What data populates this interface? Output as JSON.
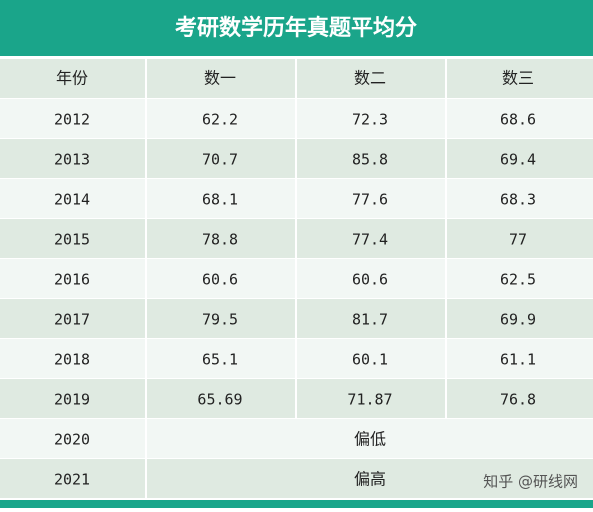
{
  "title": "考研数学历年真题平均分",
  "table": {
    "header": [
      "年份",
      "数一",
      "数二",
      "数三"
    ],
    "rows": [
      [
        "2012",
        62.2,
        72.3,
        68.6
      ],
      [
        "2013",
        70.7,
        85.8,
        69.4
      ],
      [
        "2014",
        68.1,
        77.6,
        68.3
      ],
      [
        "2015",
        78.8,
        77.4,
        77
      ],
      [
        "2016",
        60.6,
        60.6,
        62.5
      ],
      [
        "2017",
        79.5,
        81.7,
        69.9
      ],
      [
        "2018",
        65.1,
        60.1,
        61.1
      ],
      [
        "2019",
        65.69,
        71.87,
        76.8
      ],
      [
        "2020",
        "偏低"
      ],
      [
        "2021",
        "偏高"
      ]
    ]
  },
  "credit": "知乎 @研线网"
}
